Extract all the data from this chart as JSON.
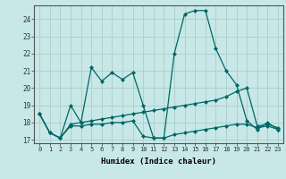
{
  "xlabel": "Humidex (Indice chaleur)",
  "bg_color": "#c8e8e8",
  "line_color": "#006666",
  "grid_color": "#b0d0d0",
  "xlim": [
    -0.5,
    23.5
  ],
  "ylim": [
    16.8,
    24.8
  ],
  "xticks": [
    0,
    1,
    2,
    3,
    4,
    5,
    6,
    7,
    8,
    9,
    10,
    11,
    12,
    13,
    14,
    15,
    16,
    17,
    18,
    19,
    20,
    21,
    22,
    23
  ],
  "yticks": [
    17,
    18,
    19,
    20,
    21,
    22,
    23,
    24
  ],
  "lines": [
    {
      "x": [
        0,
        1,
        2,
        3,
        4,
        5,
        6,
        7,
        8,
        9,
        10,
        11,
        12,
        13,
        14,
        15,
        16,
        17,
        18,
        19,
        20,
        21,
        22,
        23
      ],
      "y": [
        18.5,
        17.4,
        17.1,
        19.0,
        18.0,
        21.2,
        20.4,
        20.9,
        20.5,
        20.9,
        19.0,
        17.1,
        17.1,
        22.0,
        24.3,
        24.5,
        24.5,
        22.3,
        21.0,
        20.2,
        18.1,
        17.6,
        18.0,
        17.6
      ]
    },
    {
      "x": [
        0,
        1,
        2,
        3,
        4,
        5,
        6,
        7,
        8,
        9,
        10,
        11,
        12,
        13,
        14,
        15,
        16,
        17,
        18,
        19,
        20,
        21,
        22,
        23
      ],
      "y": [
        18.5,
        17.4,
        17.1,
        17.9,
        18.0,
        18.1,
        18.2,
        18.3,
        18.4,
        18.5,
        18.6,
        18.7,
        18.8,
        18.9,
        19.0,
        19.1,
        19.2,
        19.3,
        19.5,
        19.8,
        20.0,
        17.8,
        17.9,
        17.7
      ]
    },
    {
      "x": [
        0,
        1,
        2,
        3,
        4,
        5,
        6,
        7,
        8,
        9,
        10,
        11,
        12,
        13,
        14,
        15,
        16,
        17,
        18,
        19,
        20,
        21,
        22,
        23
      ],
      "y": [
        18.5,
        17.4,
        17.1,
        17.8,
        17.8,
        17.9,
        17.9,
        18.0,
        18.0,
        18.1,
        17.2,
        17.1,
        17.1,
        17.3,
        17.4,
        17.5,
        17.6,
        17.7,
        17.8,
        17.9,
        17.9,
        17.7,
        17.8,
        17.6
      ]
    }
  ]
}
